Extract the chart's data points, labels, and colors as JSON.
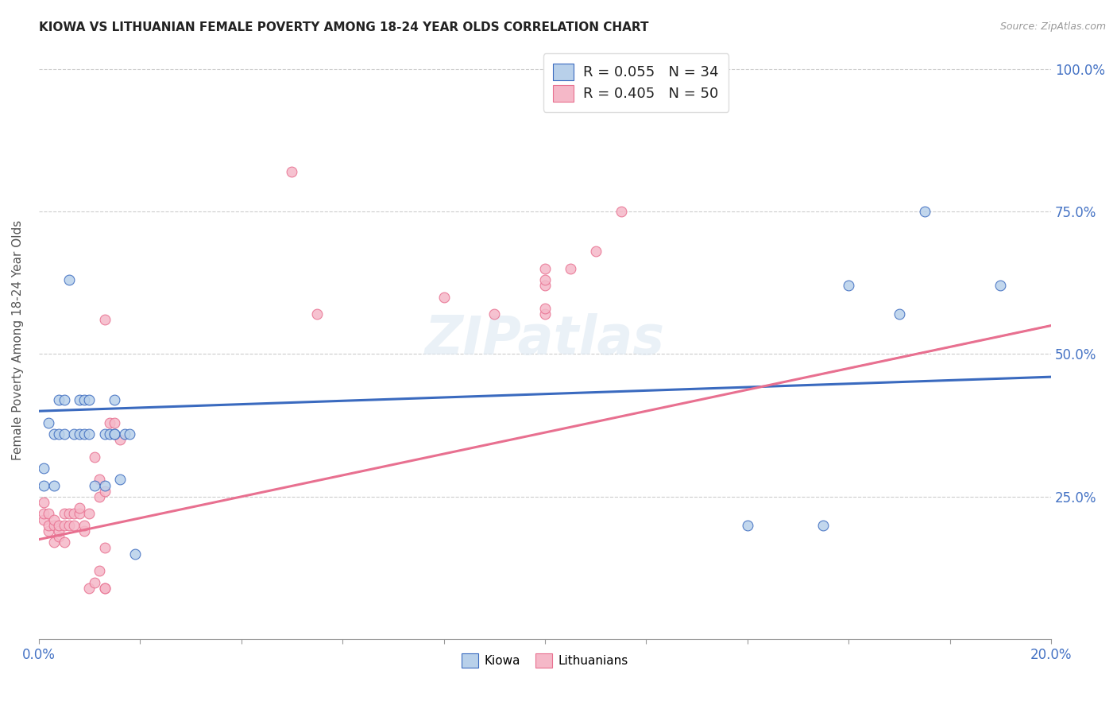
{
  "title": "KIOWA VS LITHUANIAN FEMALE POVERTY AMONG 18-24 YEAR OLDS CORRELATION CHART",
  "source": "Source: ZipAtlas.com",
  "ylabel": "Female Poverty Among 18-24 Year Olds",
  "legend_kiowa": "R = 0.055   N = 34",
  "legend_lith": "R = 0.405   N = 50",
  "kiowa_color": "#b8d0ea",
  "lith_color": "#f5b8c8",
  "kiowa_line_color": "#3a6abf",
  "lith_line_color": "#e87090",
  "background_color": "#ffffff",
  "watermark": "ZIPatlas",
  "kiowa_x": [
    0.001,
    0.001,
    0.002,
    0.003,
    0.003,
    0.004,
    0.004,
    0.005,
    0.005,
    0.006,
    0.007,
    0.008,
    0.008,
    0.009,
    0.009,
    0.01,
    0.01,
    0.011,
    0.013,
    0.013,
    0.014,
    0.015,
    0.015,
    0.015,
    0.016,
    0.017,
    0.018,
    0.019,
    0.14,
    0.155,
    0.16,
    0.17,
    0.175,
    0.19
  ],
  "kiowa_y": [
    0.27,
    0.3,
    0.38,
    0.27,
    0.36,
    0.36,
    0.42,
    0.36,
    0.42,
    0.63,
    0.36,
    0.36,
    0.42,
    0.36,
    0.42,
    0.36,
    0.42,
    0.27,
    0.27,
    0.36,
    0.36,
    0.36,
    0.42,
    0.36,
    0.28,
    0.36,
    0.36,
    0.15,
    0.2,
    0.2,
    0.62,
    0.57,
    0.75,
    0.62
  ],
  "lith_x": [
    0.001,
    0.001,
    0.001,
    0.002,
    0.002,
    0.002,
    0.003,
    0.003,
    0.003,
    0.004,
    0.004,
    0.004,
    0.005,
    0.005,
    0.005,
    0.006,
    0.006,
    0.007,
    0.007,
    0.008,
    0.008,
    0.009,
    0.009,
    0.01,
    0.01,
    0.011,
    0.011,
    0.012,
    0.012,
    0.012,
    0.013,
    0.013,
    0.013,
    0.013,
    0.013,
    0.014,
    0.015,
    0.016,
    0.05,
    0.055,
    0.08,
    0.09,
    0.1,
    0.1,
    0.1,
    0.1,
    0.1,
    0.105,
    0.11,
    0.115
  ],
  "lith_y": [
    0.21,
    0.22,
    0.24,
    0.19,
    0.2,
    0.22,
    0.17,
    0.2,
    0.21,
    0.18,
    0.19,
    0.2,
    0.17,
    0.2,
    0.22,
    0.2,
    0.22,
    0.2,
    0.22,
    0.22,
    0.23,
    0.19,
    0.2,
    0.09,
    0.22,
    0.1,
    0.32,
    0.12,
    0.25,
    0.28,
    0.09,
    0.09,
    0.16,
    0.26,
    0.56,
    0.38,
    0.38,
    0.35,
    0.82,
    0.57,
    0.6,
    0.57,
    0.57,
    0.58,
    0.62,
    0.63,
    0.65,
    0.65,
    0.68,
    0.75
  ],
  "xlim": [
    0.0,
    0.2
  ],
  "ylim": [
    0.0,
    1.05
  ],
  "xticks": [
    0.0,
    0.02,
    0.04,
    0.06,
    0.08,
    0.1,
    0.12,
    0.14,
    0.16,
    0.18,
    0.2
  ],
  "yticks_right": [
    1.0,
    0.75,
    0.5,
    0.25
  ],
  "ytick_labels_right": [
    "100.0%",
    "75.0%",
    "50.0%",
    "25.0%"
  ],
  "marker_size": 85
}
